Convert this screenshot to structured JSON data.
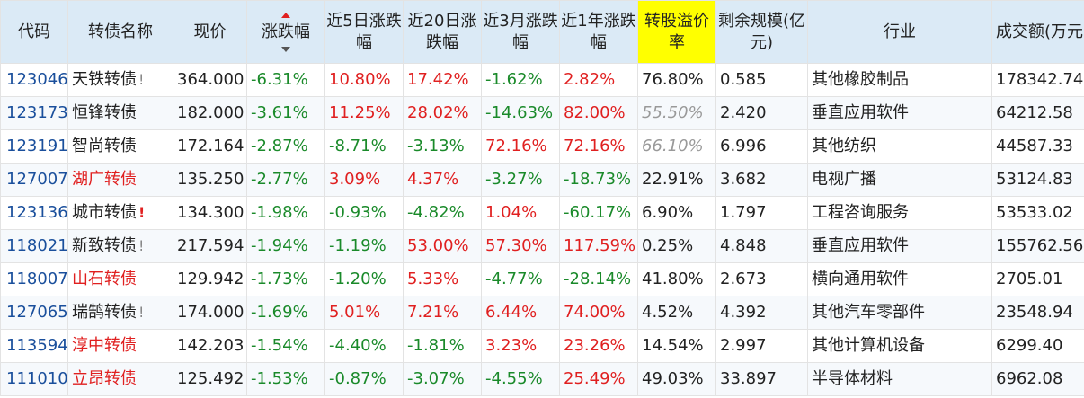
{
  "headers": {
    "code": "代码",
    "name": "转债名称",
    "price": "现价",
    "change": "涨跌幅",
    "chg5d": "近5日涨跌幅",
    "chg20d": "近20日涨跌幅",
    "chg3m": "近3月涨跌幅",
    "chg1y": "近1年涨跌幅",
    "premium": "转股溢价率",
    "remaining": "剩余规模(亿元)",
    "industry": "行业",
    "volume": "成交额(万元)"
  },
  "colors": {
    "header_bg": "#dbeaf6",
    "highlight": "#ffff00",
    "up": "#e02020",
    "down": "#1a8a2a",
    "code": "#1a4f9c"
  },
  "rows": [
    {
      "code": "123046",
      "name": "天铁转债",
      "name_red": false,
      "flag": "!",
      "flag_red": false,
      "price": "364.000",
      "change": "-6.31%",
      "chg5d": "10.80%",
      "chg20d": "17.42%",
      "chg3m": "-1.62%",
      "chg1y": "2.82%",
      "premium": "76.80%",
      "premium_gray": false,
      "remaining": "0.585",
      "industry": "其他橡胶制品",
      "volume": "178342.74"
    },
    {
      "code": "123173",
      "name": "恒锋转债",
      "name_red": false,
      "flag": "",
      "flag_red": false,
      "price": "182.000",
      "change": "-3.61%",
      "chg5d": "11.25%",
      "chg20d": "28.02%",
      "chg3m": "-14.63%",
      "chg1y": "82.00%",
      "premium": "55.50%",
      "premium_gray": true,
      "remaining": "2.420",
      "industry": "垂直应用软件",
      "volume": "64212.58"
    },
    {
      "code": "123191",
      "name": "智尚转债",
      "name_red": false,
      "flag": "",
      "flag_red": false,
      "price": "172.164",
      "change": "-2.87%",
      "chg5d": "-8.71%",
      "chg20d": "-3.13%",
      "chg3m": "72.16%",
      "chg1y": "72.16%",
      "premium": "66.10%",
      "premium_gray": true,
      "remaining": "6.996",
      "industry": "其他纺织",
      "volume": "44587.33"
    },
    {
      "code": "127007",
      "name": "湖广转债",
      "name_red": true,
      "flag": "",
      "flag_red": false,
      "price": "135.250",
      "change": "-2.77%",
      "chg5d": "3.09%",
      "chg20d": "4.37%",
      "chg3m": "-3.27%",
      "chg1y": "-18.73%",
      "premium": "22.91%",
      "premium_gray": false,
      "remaining": "3.682",
      "industry": "电视广播",
      "volume": "53124.83"
    },
    {
      "code": "123136",
      "name": "城市转债",
      "name_red": false,
      "flag": "!",
      "flag_red": true,
      "price": "134.300",
      "change": "-1.98%",
      "chg5d": "-0.93%",
      "chg20d": "-4.82%",
      "chg3m": "1.04%",
      "chg1y": "-60.17%",
      "premium": "6.90%",
      "premium_gray": false,
      "remaining": "1.797",
      "industry": "工程咨询服务",
      "volume": "53533.02"
    },
    {
      "code": "118021",
      "name": "新致转债",
      "name_red": false,
      "flag": "!",
      "flag_red": false,
      "price": "217.594",
      "change": "-1.94%",
      "chg5d": "-1.19%",
      "chg20d": "53.00%",
      "chg3m": "57.30%",
      "chg1y": "117.59%",
      "premium": "0.25%",
      "premium_gray": false,
      "remaining": "4.848",
      "industry": "垂直应用软件",
      "volume": "155762.56"
    },
    {
      "code": "118007",
      "name": "山石转债",
      "name_red": true,
      "flag": "",
      "flag_red": false,
      "price": "129.942",
      "change": "-1.73%",
      "chg5d": "-1.20%",
      "chg20d": "5.33%",
      "chg3m": "-4.77%",
      "chg1y": "-28.14%",
      "premium": "41.80%",
      "premium_gray": false,
      "remaining": "2.673",
      "industry": "横向通用软件",
      "volume": "2705.01"
    },
    {
      "code": "127065",
      "name": "瑞鹄转债",
      "name_red": false,
      "flag": "!",
      "flag_red": false,
      "price": "174.000",
      "change": "-1.69%",
      "chg5d": "5.01%",
      "chg20d": "7.21%",
      "chg3m": "6.44%",
      "chg1y": "74.00%",
      "premium": "4.52%",
      "premium_gray": false,
      "remaining": "4.392",
      "industry": "其他汽车零部件",
      "volume": "23548.94"
    },
    {
      "code": "113594",
      "name": "淳中转债",
      "name_red": true,
      "flag": "",
      "flag_red": false,
      "price": "142.203",
      "change": "-1.54%",
      "chg5d": "-4.40%",
      "chg20d": "-1.81%",
      "chg3m": "3.23%",
      "chg1y": "23.26%",
      "premium": "14.54%",
      "premium_gray": false,
      "remaining": "2.997",
      "industry": "其他计算机设备",
      "volume": "6299.40"
    },
    {
      "code": "111010",
      "name": "立昂转债",
      "name_red": true,
      "flag": "",
      "flag_red": false,
      "price": "125.492",
      "change": "-1.53%",
      "chg5d": "-0.87%",
      "chg20d": "-3.07%",
      "chg3m": "-4.55%",
      "chg1y": "25.49%",
      "premium": "49.03%",
      "premium_gray": false,
      "remaining": "33.897",
      "industry": "半导体材料",
      "volume": "6962.08"
    }
  ]
}
